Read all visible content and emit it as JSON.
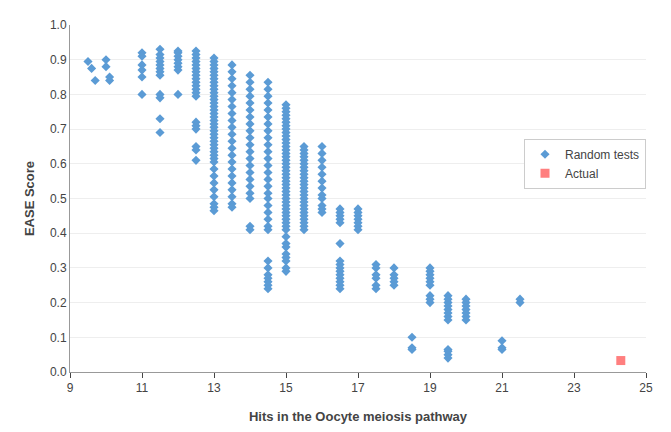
{
  "chart_data": {
    "type": "scatter",
    "xlabel": "Hits in the Oocyte meiosis pathway",
    "ylabel": "EASE Score",
    "xlim": [
      9,
      25
    ],
    "ylim": [
      0,
      1
    ],
    "xticks": [
      9,
      11,
      13,
      15,
      17,
      19,
      21,
      23,
      25
    ],
    "yticks": [
      {
        "value": 0,
        "label": "0.0"
      },
      0.1,
      0.2,
      0.3,
      0.4,
      0.5,
      0.6,
      0.7,
      0.8,
      0.9,
      {
        "value": 1,
        "label": "1.0"
      }
    ],
    "grid": "y",
    "legend": "right",
    "series": [
      {
        "name": "Random tests",
        "color": "#5B9BD5",
        "marker": "diamond",
        "x": [
          9.5,
          9.6,
          9.7,
          10.0,
          10.0,
          10.1,
          10.1,
          11.0,
          11.0,
          11.0,
          11.0,
          11.0,
          11.0,
          11.5,
          11.5,
          11.5,
          11.5,
          11.5,
          11.5,
          11.5,
          11.5,
          11.5,
          11.5,
          11.5,
          11.5,
          12.0,
          12.0,
          12.0,
          12.0,
          12.0,
          12.0,
          12.0,
          12.0,
          12.5,
          12.5,
          12.5,
          12.5,
          12.5,
          12.5,
          12.5,
          12.5,
          12.5,
          12.5,
          12.5,
          12.5,
          12.5,
          12.5,
          12.5,
          12.5,
          12.5,
          12.5,
          12.5,
          12.5,
          13.0,
          13.0,
          13.0,
          13.0,
          13.0,
          13.0,
          13.0,
          13.0,
          13.0,
          13.0,
          13.0,
          13.0,
          13.0,
          13.0,
          13.0,
          13.0,
          13.0,
          13.0,
          13.0,
          13.0,
          13.0,
          13.0,
          13.0,
          13.0,
          13.0,
          13.0,
          13.0,
          13.0,
          13.0,
          13.0,
          13.0,
          13.0,
          13.0,
          13.0,
          13.0,
          13.0,
          13.0,
          13.0,
          13.0,
          13.5,
          13.5,
          13.5,
          13.5,
          13.5,
          13.5,
          13.5,
          13.5,
          13.5,
          13.5,
          13.5,
          13.5,
          13.5,
          13.5,
          13.5,
          13.5,
          13.5,
          13.5,
          13.5,
          13.5,
          13.5,
          13.5,
          14.0,
          14.0,
          14.0,
          14.0,
          14.0,
          14.0,
          14.0,
          14.0,
          14.0,
          14.0,
          14.0,
          14.0,
          14.0,
          14.0,
          14.0,
          14.0,
          14.0,
          14.0,
          14.0,
          14.0,
          14.0,
          14.5,
          14.5,
          14.5,
          14.5,
          14.5,
          14.5,
          14.5,
          14.5,
          14.5,
          14.5,
          14.5,
          14.5,
          14.5,
          14.5,
          14.5,
          14.5,
          14.5,
          14.5,
          14.5,
          14.5,
          14.5,
          14.5,
          14.5,
          14.5,
          14.5,
          14.5,
          14.5,
          14.5,
          14.5,
          14.5,
          15.0,
          15.0,
          15.0,
          15.0,
          15.0,
          15.0,
          15.0,
          15.0,
          15.0,
          15.0,
          15.0,
          15.0,
          15.0,
          15.0,
          15.0,
          15.0,
          15.0,
          15.0,
          15.0,
          15.0,
          15.0,
          15.0,
          15.0,
          15.0,
          15.0,
          15.0,
          15.0,
          15.0,
          15.0,
          15.0,
          15.0,
          15.0,
          15.0,
          15.0,
          15.0,
          15.0,
          15.0,
          15.0,
          15.0,
          15.0,
          15.0,
          15.0,
          15.0,
          15.0,
          15.0,
          15.5,
          15.5,
          15.5,
          15.5,
          15.5,
          15.5,
          15.5,
          15.5,
          15.5,
          15.5,
          15.5,
          15.5,
          15.5,
          15.5,
          15.5,
          15.5,
          15.5,
          15.5,
          15.5,
          15.5,
          15.5,
          15.5,
          15.5,
          15.5,
          15.5,
          16.0,
          16.0,
          16.0,
          16.0,
          16.0,
          16.0,
          16.0,
          16.0,
          16.0,
          16.0,
          16.0,
          16.0,
          16.5,
          16.5,
          16.5,
          16.5,
          16.5,
          16.5,
          16.5,
          16.5,
          16.5,
          16.5,
          16.5,
          16.5,
          16.5,
          16.5,
          16.5,
          17.0,
          17.0,
          17.0,
          17.0,
          17.0,
          17.0,
          17.0,
          17.5,
          17.5,
          17.5,
          17.5,
          17.5,
          17.5,
          18.0,
          18.0,
          18.0,
          18.0,
          18.0,
          18.5,
          18.5,
          18.5,
          19.0,
          19.0,
          19.0,
          19.0,
          19.0,
          19.0,
          19.0,
          19.0,
          19.0,
          19.5,
          19.5,
          19.5,
          19.5,
          19.5,
          19.5,
          19.5,
          19.5,
          19.5,
          19.5,
          19.5,
          19.5,
          20.0,
          20.0,
          20.0,
          20.0,
          20.0,
          20.0,
          20.0,
          21.0,
          21.0,
          21.0,
          21.5,
          21.5
        ],
        "values": [
          0.895,
          0.875,
          0.84,
          0.9,
          0.88,
          0.85,
          0.84,
          0.92,
          0.91,
          0.885,
          0.87,
          0.85,
          0.8,
          0.93,
          0.915,
          0.905,
          0.895,
          0.885,
          0.875,
          0.865,
          0.855,
          0.8,
          0.79,
          0.73,
          0.69,
          0.925,
          0.92,
          0.91,
          0.9,
          0.89,
          0.88,
          0.87,
          0.8,
          0.925,
          0.915,
          0.905,
          0.895,
          0.885,
          0.875,
          0.865,
          0.855,
          0.845,
          0.835,
          0.825,
          0.815,
          0.805,
          0.795,
          0.72,
          0.71,
          0.7,
          0.65,
          0.64,
          0.61,
          0.905,
          0.895,
          0.885,
          0.875,
          0.865,
          0.855,
          0.845,
          0.835,
          0.825,
          0.815,
          0.805,
          0.795,
          0.785,
          0.775,
          0.765,
          0.755,
          0.745,
          0.735,
          0.725,
          0.715,
          0.705,
          0.695,
          0.685,
          0.675,
          0.665,
          0.655,
          0.645,
          0.635,
          0.625,
          0.615,
          0.605,
          0.585,
          0.565,
          0.545,
          0.525,
          0.505,
          0.485,
          0.475,
          0.465,
          0.885,
          0.865,
          0.845,
          0.825,
          0.805,
          0.785,
          0.765,
          0.745,
          0.725,
          0.705,
          0.685,
          0.665,
          0.645,
          0.625,
          0.605,
          0.585,
          0.565,
          0.545,
          0.525,
          0.505,
          0.485,
          0.475,
          0.855,
          0.835,
          0.815,
          0.795,
          0.775,
          0.755,
          0.735,
          0.715,
          0.695,
          0.675,
          0.655,
          0.635,
          0.615,
          0.595,
          0.575,
          0.555,
          0.535,
          0.515,
          0.5,
          0.42,
          0.41,
          0.835,
          0.815,
          0.795,
          0.775,
          0.755,
          0.735,
          0.715,
          0.695,
          0.675,
          0.655,
          0.635,
          0.615,
          0.595,
          0.575,
          0.555,
          0.535,
          0.515,
          0.5,
          0.48,
          0.46,
          0.44,
          0.42,
          0.41,
          0.32,
          0.3,
          0.28,
          0.27,
          0.26,
          0.25,
          0.24,
          0.77,
          0.76,
          0.75,
          0.74,
          0.73,
          0.72,
          0.71,
          0.7,
          0.69,
          0.68,
          0.67,
          0.66,
          0.65,
          0.64,
          0.63,
          0.62,
          0.61,
          0.6,
          0.59,
          0.58,
          0.57,
          0.56,
          0.55,
          0.54,
          0.53,
          0.52,
          0.51,
          0.5,
          0.49,
          0.48,
          0.47,
          0.46,
          0.45,
          0.44,
          0.43,
          0.42,
          0.41,
          0.39,
          0.37,
          0.36,
          0.34,
          0.33,
          0.32,
          0.3,
          0.29,
          0.65,
          0.64,
          0.63,
          0.62,
          0.61,
          0.6,
          0.59,
          0.58,
          0.57,
          0.56,
          0.55,
          0.54,
          0.53,
          0.52,
          0.51,
          0.5,
          0.49,
          0.48,
          0.47,
          0.46,
          0.45,
          0.44,
          0.43,
          0.42,
          0.41,
          0.65,
          0.63,
          0.61,
          0.59,
          0.57,
          0.55,
          0.53,
          0.51,
          0.5,
          0.48,
          0.47,
          0.46,
          0.47,
          0.46,
          0.45,
          0.44,
          0.43,
          0.37,
          0.32,
          0.31,
          0.3,
          0.29,
          0.28,
          0.27,
          0.26,
          0.25,
          0.24,
          0.47,
          0.46,
          0.45,
          0.44,
          0.43,
          0.42,
          0.41,
          0.31,
          0.3,
          0.28,
          0.27,
          0.25,
          0.24,
          0.3,
          0.28,
          0.27,
          0.26,
          0.25,
          0.1,
          0.07,
          0.065,
          0.3,
          0.29,
          0.28,
          0.27,
          0.26,
          0.25,
          0.22,
          0.21,
          0.2,
          0.22,
          0.21,
          0.2,
          0.19,
          0.18,
          0.17,
          0.16,
          0.15,
          0.06,
          0.065,
          0.05,
          0.04,
          0.21,
          0.2,
          0.19,
          0.18,
          0.17,
          0.16,
          0.15,
          0.09,
          0.07,
          0.065,
          0.21,
          0.2
        ]
      },
      {
        "name": "Actual",
        "color": "#FF7F7F",
        "marker": "square",
        "x": [
          24.3
        ],
        "values": [
          0.033
        ]
      }
    ]
  }
}
